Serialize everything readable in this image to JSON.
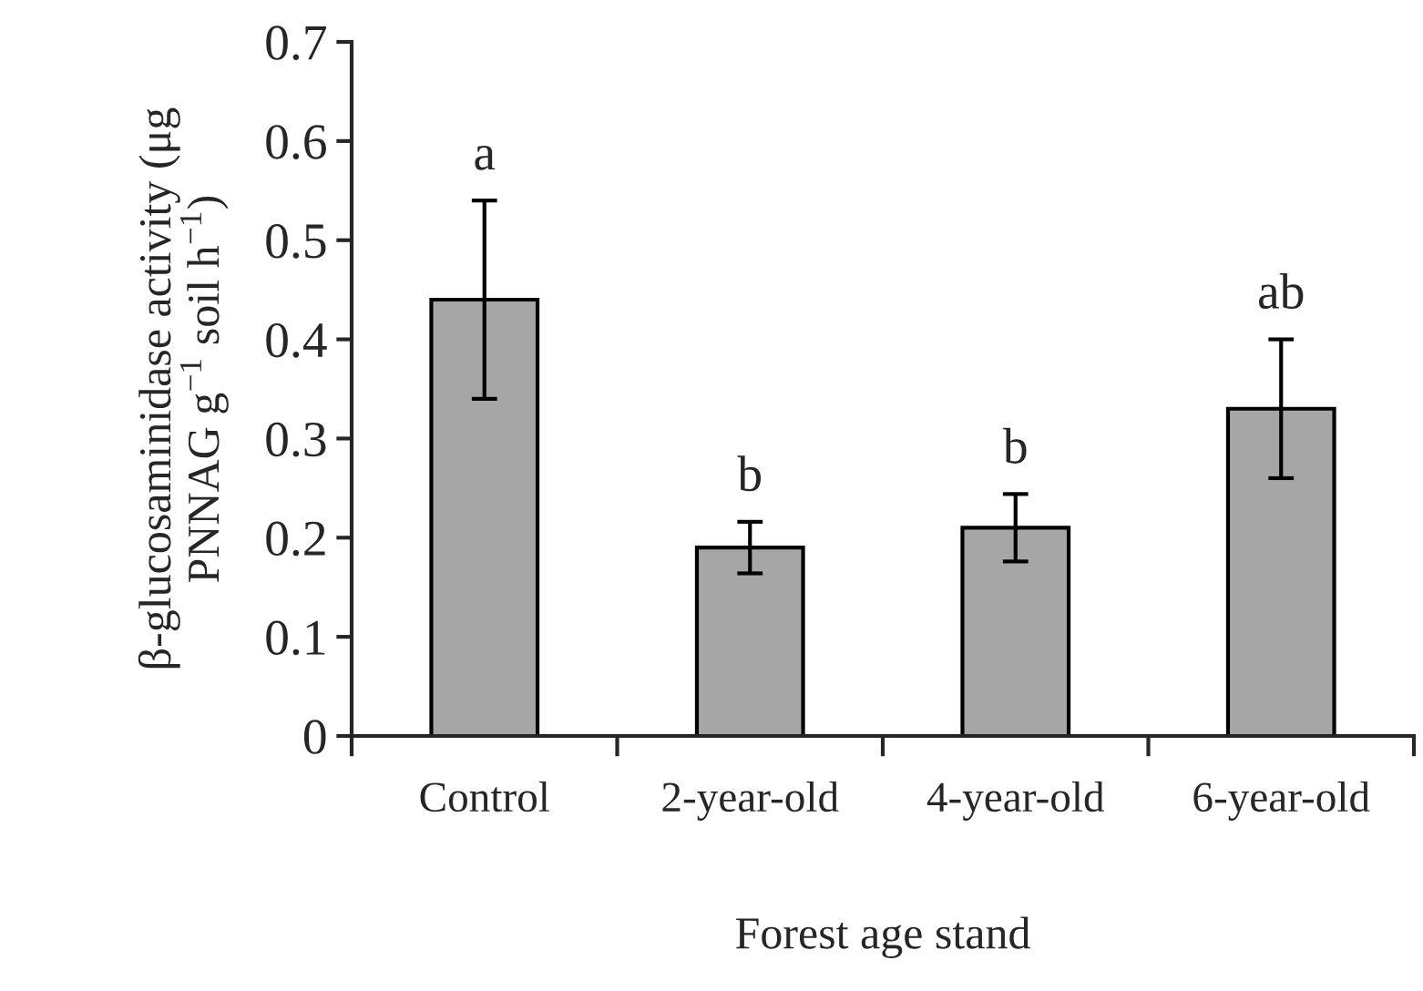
{
  "chart_data": {
    "type": "bar",
    "xlabel": "Forest age stand",
    "ylabel": "β-glucosaminidase activity (μg PNNAG g$^{−1}$ soil h$^{−1}$)",
    "categories": [
      "Control",
      "2-year-old",
      "4-year-old",
      "6-year-old"
    ],
    "values": [
      0.44,
      0.19,
      0.21,
      0.33
    ],
    "errors": [
      0.1,
      0.026,
      0.034,
      0.07
    ],
    "color": "#a6a6a6",
    "ylim": [
      0,
      0.7
    ],
    "yticks": [
      0,
      0.1,
      0.2,
      0.3,
      0.4,
      0.5,
      0.6,
      0.7
    ],
    "grid": false,
    "annotations": [
      "a",
      "b",
      "b",
      "ab"
    ]
  }
}
